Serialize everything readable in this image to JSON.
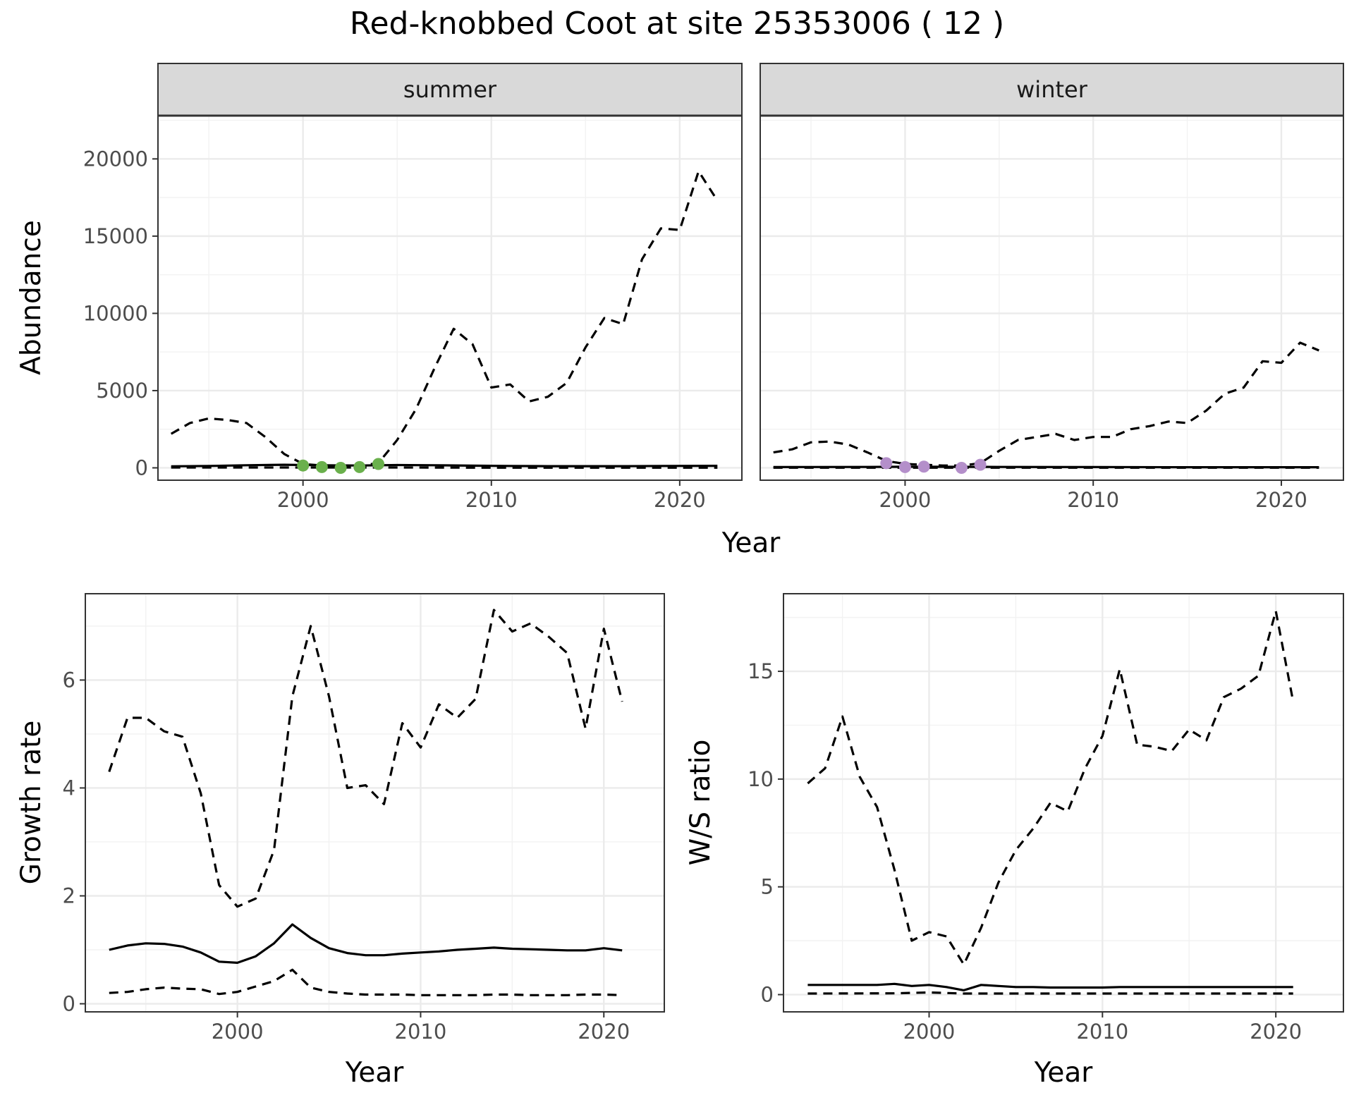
{
  "figure": {
    "title": "Red-knobbed Coot at site 25353006 ( 12 )"
  },
  "chart_data": [
    {
      "type": "line",
      "id": "abundance",
      "xlabel": "Year",
      "ylabel": "Abundance",
      "xlim": [
        1992.3,
        2023.3
      ],
      "ylim": [
        -800,
        22800
      ],
      "xticks": [
        2000,
        2010,
        2020
      ],
      "yticks": [
        0,
        5000,
        10000,
        15000,
        20000
      ],
      "grid": true,
      "facets": [
        {
          "label": "summer",
          "observation_color": "#6ab04c",
          "observations": {
            "x": [
              2000,
              2001,
              2002,
              2003,
              2004
            ],
            "y": [
              150,
              50,
              0,
              50,
              250
            ]
          },
          "mean": {
            "x": [
              1993,
              1995,
              1997,
              1999,
              2001,
              2003,
              2005,
              2007,
              2009,
              2011,
              2013,
              2015,
              2017,
              2019,
              2022
            ],
            "y": [
              100,
              120,
              170,
              200,
              170,
              150,
              180,
              170,
              140,
              120,
              110,
              110,
              110,
              120,
              130
            ]
          },
          "upper": {
            "x": [
              1993,
              1994,
              1995,
              1996,
              1997,
              1998,
              1999,
              2000,
              2001,
              2002,
              2003,
              2004,
              2005,
              2006,
              2007,
              2008,
              2009,
              2010,
              2011,
              2012,
              2013,
              2014,
              2015,
              2016,
              2017,
              2018,
              2019,
              2020,
              2021,
              2022
            ],
            "y": [
              2200,
              2900,
              3200,
              3100,
              2900,
              2000,
              900,
              250,
              150,
              120,
              150,
              300,
              1800,
              3800,
              6500,
              9000,
              8000,
              5200,
              5400,
              4300,
              4600,
              5500,
              7800,
              9700,
              9300,
              13500,
              15500,
              15400,
              19200,
              17300
            ]
          },
          "lower": {
            "x": [
              1993,
              2000,
              2005,
              2010,
              2015,
              2022
            ],
            "y": [
              20,
              20,
              20,
              10,
              10,
              10
            ]
          }
        },
        {
          "label": "winter",
          "observation_color": "#b48fca",
          "observations": {
            "x": [
              1999,
              2000,
              2001,
              2003,
              2004
            ],
            "y": [
              300,
              50,
              80,
              0,
              200
            ]
          },
          "mean": {
            "x": [
              1993,
              1998,
              2000,
              2005,
              2010,
              2015,
              2022
            ],
            "y": [
              50,
              60,
              70,
              60,
              50,
              40,
              40
            ]
          },
          "upper": {
            "x": [
              1993,
              1994,
              1995,
              1996,
              1997,
              1998,
              1999,
              2000,
              2001,
              2002,
              2003,
              2004,
              2005,
              2006,
              2007,
              2008,
              2009,
              2010,
              2011,
              2012,
              2013,
              2014,
              2015,
              2016,
              2017,
              2018,
              2019,
              2020,
              2021,
              2022
            ],
            "y": [
              1000,
              1200,
              1650,
              1700,
              1500,
              1000,
              450,
              250,
              200,
              150,
              150,
              300,
              1100,
              1800,
              2000,
              2200,
              1800,
              2000,
              2000,
              2500,
              2700,
              3000,
              2900,
              3700,
              4800,
              5200,
              6900,
              6800,
              8100,
              7600
            ]
          },
          "lower": {
            "x": [
              1993,
              2022
            ],
            "y": [
              10,
              10
            ]
          }
        }
      ]
    },
    {
      "type": "line",
      "id": "growth",
      "xlabel": "Year",
      "ylabel": "Growth rate",
      "xlim": [
        1991.7,
        2023.3
      ],
      "ylim": [
        -0.15,
        7.6
      ],
      "xticks": [
        2000,
        2010,
        2020
      ],
      "yticks": [
        0,
        2,
        4,
        6
      ],
      "grid": true,
      "mean": {
        "x": [
          1993,
          1994,
          1995,
          1996,
          1997,
          1998,
          1999,
          2000,
          2001,
          2002,
          2003,
          2004,
          2005,
          2006,
          2007,
          2008,
          2009,
          2010,
          2011,
          2012,
          2013,
          2014,
          2015,
          2016,
          2017,
          2018,
          2019,
          2020,
          2021
        ],
        "y": [
          1.0,
          1.08,
          1.12,
          1.11,
          1.06,
          0.95,
          0.78,
          0.76,
          0.88,
          1.12,
          1.47,
          1.22,
          1.03,
          0.94,
          0.9,
          0.9,
          0.93,
          0.95,
          0.97,
          1.0,
          1.02,
          1.04,
          1.02,
          1.01,
          1.0,
          0.99,
          0.99,
          1.03,
          0.99
        ]
      },
      "upper": {
        "x": [
          1993,
          1994,
          1995,
          1996,
          1997,
          1998,
          1999,
          2000,
          2001,
          2002,
          2003,
          2004,
          2005,
          2006,
          2007,
          2008,
          2009,
          2010,
          2011,
          2012,
          2013,
          2014,
          2015,
          2016,
          2017,
          2018,
          2019,
          2020,
          2021
        ],
        "y": [
          4.3,
          5.3,
          5.3,
          5.05,
          4.95,
          3.9,
          2.2,
          1.8,
          1.95,
          2.85,
          5.7,
          7.0,
          5.7,
          4.0,
          4.05,
          3.7,
          5.2,
          4.75,
          5.55,
          5.3,
          5.65,
          7.3,
          6.9,
          7.05,
          6.8,
          6.5,
          5.1,
          6.95,
          5.6
        ]
      },
      "lower": {
        "x": [
          1993,
          1994,
          1995,
          1996,
          1997,
          1998,
          1999,
          2000,
          2001,
          2002,
          2003,
          2004,
          2005,
          2006,
          2007,
          2008,
          2009,
          2010,
          2011,
          2012,
          2013,
          2014,
          2015,
          2016,
          2017,
          2018,
          2019,
          2020,
          2021
        ],
        "y": [
          0.2,
          0.22,
          0.27,
          0.3,
          0.28,
          0.27,
          0.18,
          0.22,
          0.32,
          0.42,
          0.63,
          0.3,
          0.22,
          0.19,
          0.17,
          0.17,
          0.17,
          0.16,
          0.16,
          0.16,
          0.16,
          0.17,
          0.17,
          0.16,
          0.16,
          0.16,
          0.17,
          0.17,
          0.16
        ]
      }
    },
    {
      "type": "line",
      "id": "ws-ratio",
      "xlabel": "Year",
      "ylabel": "W/S ratio",
      "xlim": [
        1991.6,
        2023.9
      ],
      "ylim": [
        -0.8,
        18.6
      ],
      "xticks": [
        2000,
        2010,
        2020
      ],
      "yticks": [
        0,
        5,
        10,
        15
      ],
      "grid": true,
      "mean": {
        "x": [
          1993,
          1994,
          1995,
          1996,
          1997,
          1998,
          1999,
          2000,
          2001,
          2002,
          2003,
          2004,
          2005,
          2006,
          2007,
          2008,
          2009,
          2010,
          2011,
          2012,
          2013,
          2014,
          2015,
          2016,
          2017,
          2018,
          2019,
          2020,
          2021
        ],
        "y": [
          0.45,
          0.45,
          0.45,
          0.45,
          0.45,
          0.5,
          0.4,
          0.45,
          0.35,
          0.2,
          0.45,
          0.4,
          0.35,
          0.35,
          0.33,
          0.33,
          0.33,
          0.33,
          0.35,
          0.35,
          0.35,
          0.35,
          0.35,
          0.35,
          0.35,
          0.35,
          0.35,
          0.35,
          0.35
        ]
      },
      "upper": {
        "x": [
          1993,
          1994,
          1995,
          1996,
          1997,
          1998,
          1999,
          2000,
          2001,
          2002,
          2003,
          2004,
          2005,
          2006,
          2007,
          2008,
          2009,
          2010,
          2011,
          2012,
          2013,
          2014,
          2015,
          2016,
          2017,
          2018,
          2019,
          2020,
          2021
        ],
        "y": [
          9.8,
          10.5,
          12.9,
          10.1,
          8.7,
          5.8,
          2.5,
          2.9,
          2.7,
          1.4,
          3.1,
          5.2,
          6.7,
          7.7,
          8.9,
          8.5,
          10.5,
          12.0,
          15.1,
          11.6,
          11.5,
          11.3,
          12.3,
          11.8,
          13.8,
          14.2,
          14.8,
          17.8,
          13.6
        ]
      },
      "lower": {
        "x": [
          1993,
          1998,
          2000,
          2002,
          2005,
          2010,
          2015,
          2021
        ],
        "y": [
          0.05,
          0.06,
          0.1,
          0.05,
          0.05,
          0.05,
          0.05,
          0.05
        ]
      }
    }
  ]
}
